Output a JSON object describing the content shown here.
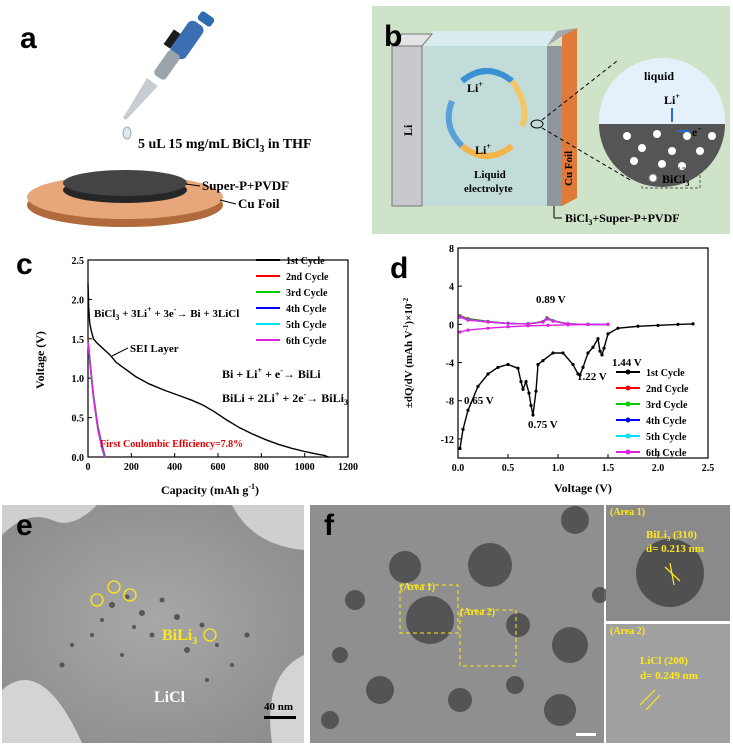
{
  "panel_a": {
    "label": "a",
    "pipette_text": "5 uL 15 mg/mL BiCl",
    "pipette_sub": "3",
    "pipette_tail": " in THF",
    "layer_top": "Super-P+PVDF",
    "layer_bottom": "Cu Foil"
  },
  "panel_b": {
    "label": "b",
    "li_plate": "Li",
    "cu_plate": "Cu Foil",
    "li_ion_top": "Li",
    "li_ion_bottom": "Li",
    "plus": "+",
    "electrolyte_line1": "Liquid",
    "electrolyte_line2": "electrolyte",
    "zoom_liquid": "liquid",
    "zoom_li": "Li",
    "zoom_e": "e",
    "minus": "−",
    "legend_bicl3": "BiCl",
    "legend_sub": "3",
    "bottom_label": "BiCl",
    "bottom_sub": "3",
    "bottom_tail": "+Super-P+PVDF"
  },
  "panel_c": {
    "label": "c",
    "chart_data": {
      "type": "line",
      "xlabel": "Capacity (mAh g",
      "xlabel_sup": "-1",
      "ylabel": "Voltage (V)",
      "xlim": [
        0,
        1200
      ],
      "ylim": [
        0.0,
        2.5
      ],
      "xticks": [
        "0",
        "200",
        "400",
        "600",
        "800",
        "1000",
        "1200"
      ],
      "yticks": [
        "0.0",
        "0.5",
        "1.0",
        "1.5",
        "2.0",
        "2.5"
      ],
      "legend": [
        "1st Cycle",
        "2nd Cycle",
        "3rd Cycle",
        "4th Cycle",
        "5th Cycle",
        "6th Cycle"
      ],
      "colors": [
        "#000000",
        "#ff0000",
        "#00cc00",
        "#0000ff",
        "#00e5ff",
        "#e020e0"
      ],
      "series": [
        {
          "name": "1st Cycle",
          "x": [
            0,
            3,
            8,
            15,
            25,
            40,
            60,
            80,
            100,
            130,
            170,
            220,
            280,
            350,
            420,
            480,
            530,
            580,
            640,
            700,
            760,
            820,
            880,
            940,
            1000,
            1050,
            1090,
            1110
          ],
          "y": [
            2.2,
            1.9,
            1.7,
            1.6,
            1.5,
            1.45,
            1.4,
            1.35,
            1.3,
            1.2,
            1.12,
            1.02,
            0.93,
            0.85,
            0.78,
            0.72,
            0.66,
            0.58,
            0.47,
            0.37,
            0.29,
            0.22,
            0.16,
            0.11,
            0.07,
            0.04,
            0.02,
            0.0
          ]
        },
        {
          "name": "2nd Cycle",
          "x": [
            0,
            10,
            25,
            45,
            65,
            80
          ],
          "y": [
            1.5,
            1.2,
            0.8,
            0.4,
            0.15,
            0.0
          ]
        },
        {
          "name": "3rd Cycle",
          "x": [
            0,
            10,
            25,
            45,
            65,
            80
          ],
          "y": [
            1.48,
            1.18,
            0.78,
            0.38,
            0.13,
            0.0
          ]
        },
        {
          "name": "4th Cycle",
          "x": [
            0,
            10,
            25,
            45,
            65,
            78
          ],
          "y": [
            1.47,
            1.17,
            0.77,
            0.37,
            0.12,
            0.0
          ]
        },
        {
          "name": "5th Cycle",
          "x": [
            0,
            10,
            25,
            45,
            65,
            77
          ],
          "y": [
            1.46,
            1.16,
            0.76,
            0.36,
            0.11,
            0.0
          ]
        },
        {
          "name": "6th Cycle",
          "x": [
            0,
            10,
            25,
            45,
            65,
            76
          ],
          "y": [
            1.45,
            1.15,
            0.75,
            0.35,
            0.1,
            0.0
          ]
        }
      ],
      "annotations": {
        "reaction1": "BiCl",
        "reaction1_tail": " + 3Li",
        "reaction1_tail2": " + 3e",
        "reaction1_tail3": "→ Bi + 3LiCl",
        "sei": "SEI Layer",
        "reaction2": "Bi + Li",
        "reaction2_tail": " + e",
        "reaction2_tail2": "→ BiLi",
        "reaction3": "BiLi + 2Li",
        "reaction3_tail": " + 2e",
        "reaction3_tail2": "→ BiLi",
        "coulombic": "First Coulombic Efficiency=7.8%"
      }
    }
  },
  "panel_d": {
    "label": "d",
    "chart_data": {
      "type": "line",
      "xlabel": "Voltage (V)",
      "ylabel": "±dQ/dV (mAh V",
      "ylabel_tail": ")×10",
      "ylabel_sup1": "-1",
      "ylabel_sup2": "-2",
      "xlim": [
        0.0,
        2.5
      ],
      "ylim": [
        -14,
        8
      ],
      "xticks": [
        "0.0",
        "0.5",
        "1.0",
        "1.5",
        "2.0",
        "2.5"
      ],
      "yticks": [
        "-12",
        "-8",
        "-4",
        "0",
        "4",
        "8"
      ],
      "legend": [
        "1st Cycle",
        "2nd Cycle",
        "3rd Cycle",
        "4th Cycle",
        "5th Cycle",
        "6th Cycle"
      ],
      "colors": [
        "#000000",
        "#ff0000",
        "#00cc00",
        "#0000ff",
        "#00e5ff",
        "#e020e0"
      ],
      "series": [
        {
          "name": "1st Cycle",
          "x": [
            0.02,
            0.05,
            0.1,
            0.2,
            0.3,
            0.4,
            0.5,
            0.6,
            0.63,
            0.65,
            0.68,
            0.71,
            0.73,
            0.75,
            0.78,
            0.8,
            0.85,
            0.95,
            1.05,
            1.15,
            1.2,
            1.22,
            1.25,
            1.3,
            1.35,
            1.4,
            1.42,
            1.44,
            1.46,
            1.5,
            1.6,
            1.8,
            2.0,
            2.2,
            2.35
          ],
          "y": [
            -13,
            -11,
            -9,
            -6.5,
            -5.2,
            -4.5,
            -4.2,
            -4.6,
            -6,
            -6.8,
            -6,
            -7.2,
            -8.5,
            -9.5,
            -7,
            -4.2,
            -3.8,
            -3.0,
            -3.0,
            -4.2,
            -5.2,
            -5.3,
            -4.5,
            -3,
            -2.4,
            -1.5,
            -2.8,
            -3.2,
            -2.5,
            -1.0,
            -0.4,
            -0.2,
            -0.1,
            0.0,
            0.05
          ]
        },
        {
          "name": "2nd Cycle",
          "x": [
            0.02,
            0.1,
            0.3,
            0.5,
            0.7,
            0.85,
            0.89,
            0.95,
            1.1,
            1.3,
            1.5
          ],
          "y": [
            0.9,
            0.6,
            0.3,
            0.1,
            0.05,
            0.3,
            0.7,
            0.4,
            0.05,
            0.0,
            0.0
          ]
        },
        {
          "name": "3rd Cycle",
          "x": [
            0.02,
            0.1,
            0.3,
            0.5,
            0.7,
            0.85,
            0.89,
            0.95,
            1.1,
            1.3,
            1.5
          ],
          "y": [
            0.85,
            0.55,
            0.28,
            0.1,
            0.05,
            0.28,
            0.65,
            0.38,
            0.05,
            0.0,
            0.0
          ]
        },
        {
          "name": "4th Cycle",
          "x": [
            0.02,
            0.1,
            0.3,
            0.5,
            0.7,
            0.85,
            0.89,
            0.95,
            1.1,
            1.3,
            1.5
          ],
          "y": [
            0.8,
            0.5,
            0.26,
            0.1,
            0.05,
            0.26,
            0.6,
            0.36,
            0.05,
            0.0,
            0.0
          ]
        },
        {
          "name": "5th Cycle",
          "x": [
            0.02,
            0.1,
            0.3,
            0.5,
            0.7,
            0.85,
            0.89,
            0.95,
            1.1,
            1.3,
            1.5
          ],
          "y": [
            0.78,
            0.48,
            0.25,
            0.1,
            0.05,
            0.25,
            0.58,
            0.35,
            0.05,
            0.0,
            0.0
          ]
        },
        {
          "name": "6th Cycle",
          "x": [
            0.02,
            0.1,
            0.3,
            0.5,
            0.7,
            0.85,
            0.89,
            0.95,
            1.1,
            1.3,
            1.5
          ],
          "y": [
            0.75,
            0.45,
            0.24,
            0.1,
            0.05,
            0.24,
            0.55,
            0.34,
            0.05,
            0.0,
            0.0
          ]
        },
        {
          "name": "6th Cycle-neg",
          "x": [
            0.02,
            0.1,
            0.3,
            0.5,
            0.7,
            0.9,
            1.1,
            1.3,
            1.5
          ],
          "y": [
            -0.8,
            -0.6,
            -0.4,
            -0.25,
            -0.15,
            -0.1,
            -0.05,
            -0.02,
            0.0
          ]
        }
      ],
      "peak_labels": [
        "0.89 V",
        "1.44 V",
        "1.22 V",
        "0.65 V",
        "0.75 V"
      ]
    }
  },
  "panel_e": {
    "label": "e",
    "phase1": "BiLi",
    "phase1_sub": "3",
    "phase2": "LiCl",
    "scalebar": "40 nm"
  },
  "panel_f": {
    "label": "f",
    "area1": "(Area 1)",
    "area2": "(Area 2)",
    "inset1_tag": "(Area 1)",
    "inset1_line1": "BiLi",
    "inset1_sub": "3",
    "inset1_tail": " (310)",
    "inset1_line2": "d= 0.213 nm",
    "inset2_tag": "(Area 2)",
    "inset2_line1": "LiCl (200)",
    "inset2_line2": "d= 0.249 nm"
  }
}
